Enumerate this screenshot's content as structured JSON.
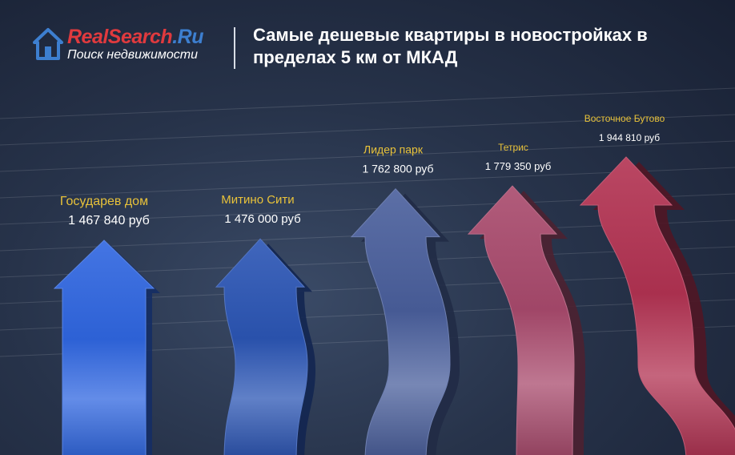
{
  "header": {
    "logo_text_part1": "RealSearch",
    "logo_text_part2": ".Ru",
    "logo_subtitle": "Поиск недвижимости",
    "title": "Самые дешевые квартиры в новостройках в пределах 5 км от МКАД"
  },
  "chart_data": {
    "type": "bar",
    "title": "Самые дешевые квартиры в новостройках в пределах 5 км от МКАД",
    "categories": [
      "Государев дом",
      "Митино Сити",
      "Лидер парк",
      "Тетрис",
      "Восточное Бутово"
    ],
    "values": [
      1467840,
      1476000,
      1762800,
      1779350,
      1944810
    ],
    "value_labels": [
      "1 467 840 руб",
      "1 476 000 руб",
      "1 762 800 руб",
      "1 779 350 руб",
      "1 944 810 руб"
    ],
    "unit": "руб",
    "colors": [
      "#2f66e0",
      "#2b55b4",
      "#4a5f9c",
      "#a84a6c",
      "#b23252"
    ],
    "grid": true,
    "legend": "none"
  }
}
